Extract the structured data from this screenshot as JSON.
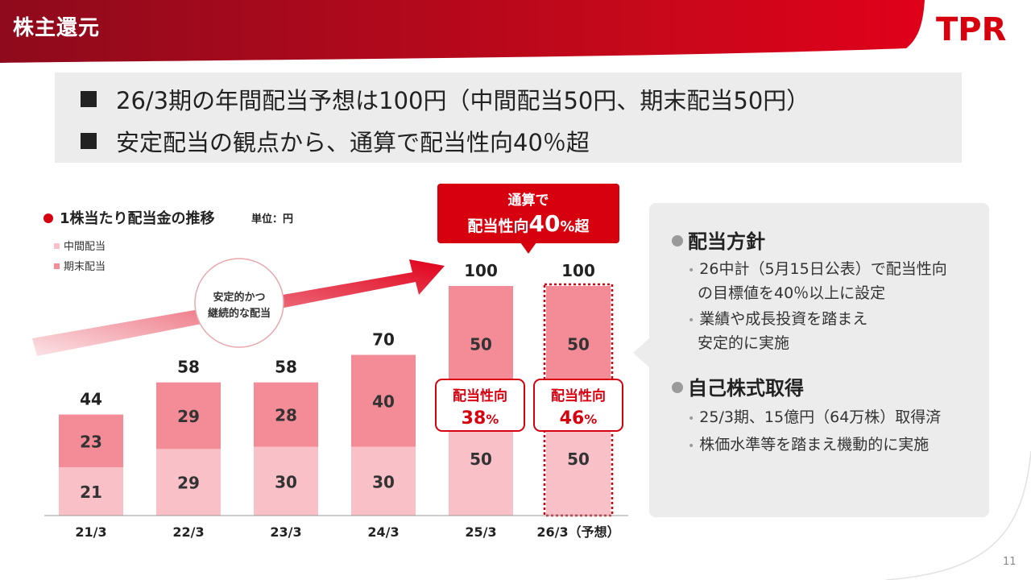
{
  "header": {
    "title": "株主還元",
    "logo": "TPR"
  },
  "summary": {
    "line1": "26/3期の年間配当予想は100円（中間配当50円、期末配当50円）",
    "line2": "安定配当の観点から、通算で配当性向40％超"
  },
  "callout": {
    "line1": "通算で",
    "line2_prefix": "配当性向",
    "line2_value": "40",
    "line2_suffix": "%超"
  },
  "arrow_label": {
    "line1": "安定的かつ",
    "line2": "継続的な配当"
  },
  "payout_labels": [
    {
      "label": "配当性向",
      "value": "38",
      "unit": "%"
    },
    {
      "label": "配当性向",
      "value": "46",
      "unit": "%"
    }
  ],
  "policy": {
    "section1_title": "配当方針",
    "section1_bullets": [
      "26中計（5月15日公表）で配当性向の目標値を40％以上に設定",
      "業績や成長投資を踏まえ安定的に実施"
    ],
    "section1_bullets_wrapped": [
      [
        "26中計（5月15日公表）で配当性向",
        "の目標値を40％以上に設定"
      ],
      [
        "業績や成長投資を踏まえ",
        "安定的に実施"
      ]
    ],
    "section2_title": "自己株式取得",
    "section2_bullets": [
      "25/3期、15億円（64万株）取得済",
      "株価水準等を踏まえ機動的に実施"
    ]
  },
  "page_number": "11",
  "colors": {
    "brand": "#d7000f",
    "interim": "#f9c0c8",
    "year_end": "#f38c97",
    "dark": "#222222"
  },
  "chart_data": {
    "type": "bar",
    "stacked": true,
    "title": "1株当たり配当金の推移",
    "unit_label": "単位：円",
    "categories": [
      "21/3",
      "22/3",
      "23/3",
      "24/3",
      "25/3",
      "26/3（予想）"
    ],
    "series": [
      {
        "name": "中間配当",
        "values": [
          21,
          29,
          30,
          30,
          50,
          50
        ]
      },
      {
        "name": "期末配当",
        "values": [
          23,
          29,
          28,
          40,
          50,
          50
        ]
      }
    ],
    "totals": [
      44,
      58,
      58,
      70,
      100,
      100
    ],
    "forecast_index": 5,
    "legend_position": "top-left",
    "ylim": [
      0,
      100
    ]
  }
}
